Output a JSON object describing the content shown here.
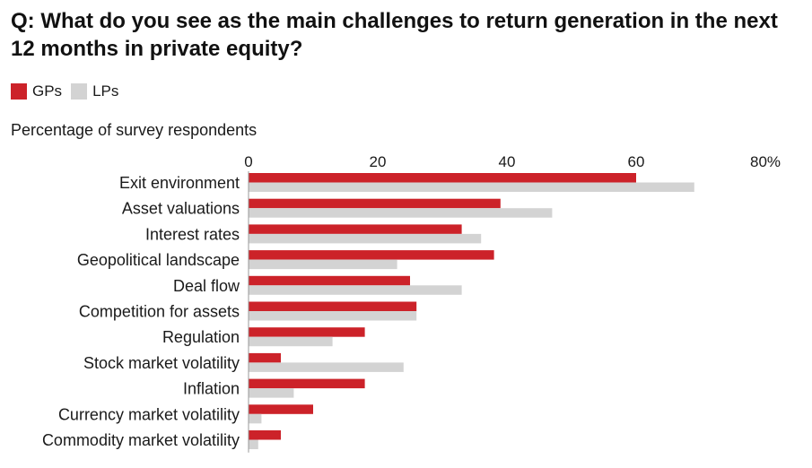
{
  "title": "Q: What do you see as the main challenges to return generation in the next 12 months in private equity?",
  "subtitle": "Percentage of survey respondents",
  "colors": {
    "GPs": "#cc2229",
    "LPs": "#d3d3d3"
  },
  "legend": [
    {
      "label": "GPs",
      "color": "#cc2229"
    },
    {
      "label": "LPs",
      "color": "#d3d3d3"
    }
  ],
  "chart_data": {
    "type": "bar",
    "orientation": "horizontal",
    "categories": [
      "Exit environment",
      "Asset valuations",
      "Interest rates",
      "Geopolitical landscape",
      "Deal flow",
      "Competition for assets",
      "Regulation",
      "Stock market volatility",
      "Inflation",
      "Currency market volatility",
      "Commodity market volatility"
    ],
    "series": [
      {
        "name": "GPs",
        "values": [
          60,
          39,
          33,
          38,
          25,
          26,
          18,
          5,
          18,
          10,
          5
        ]
      },
      {
        "name": "LPs",
        "values": [
          69,
          47,
          36,
          23,
          33,
          26,
          13,
          24,
          7,
          2,
          1.5
        ]
      }
    ],
    "xlim": [
      0,
      80
    ],
    "ticks": [
      "0",
      "20",
      "40",
      "60",
      "80%"
    ],
    "tick_values": [
      0,
      20,
      40,
      60,
      80
    ],
    "legend_position": "top-left",
    "grid": false
  }
}
